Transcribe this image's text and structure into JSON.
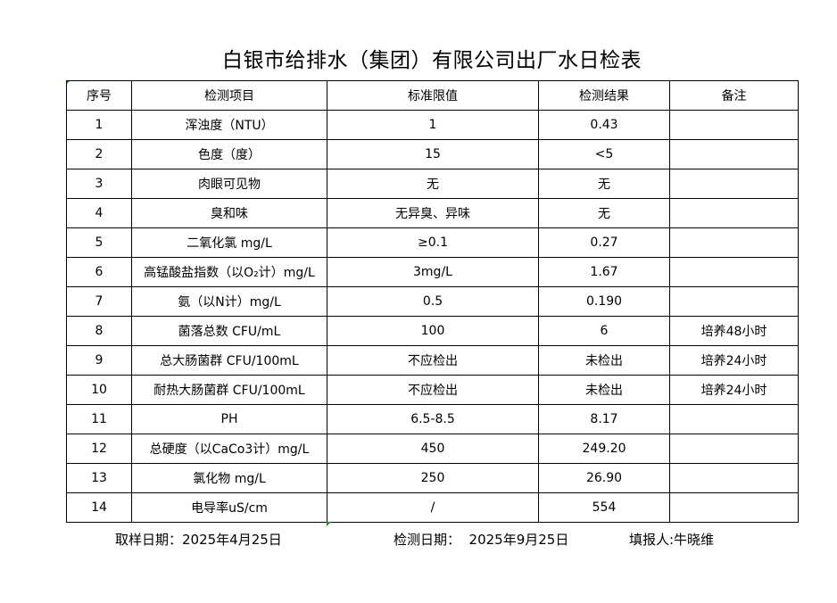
{
  "title": "白银市给排水（集团）有限公司出厂水日检表",
  "columns": [
    "序号",
    "检测项目",
    "标准限值",
    "检测结果",
    "备注"
  ],
  "rows": [
    [
      "1",
      "浑浊度（NTU）",
      "1",
      "0.43",
      ""
    ],
    [
      "2",
      "色度（度）",
      "15",
      "<5",
      ""
    ],
    [
      "3",
      "肉眼可见物",
      "无",
      "无",
      ""
    ],
    [
      "4",
      "臭和味",
      "无异臭、异味",
      "无",
      ""
    ],
    [
      "5",
      "二氧化氯 mg/L",
      "≥0.1",
      "0.27",
      ""
    ],
    [
      "6",
      "高锰酸盐指数（以O₂计）mg/L",
      "3mg/L",
      "1.67",
      ""
    ],
    [
      "7",
      "氨（以N计）mg/L",
      "0.5",
      "0.190",
      ""
    ],
    [
      "8",
      "菌落总数 CFU/mL",
      "100",
      "6",
      "培养48小时"
    ],
    [
      "9",
      "总大肠菌群 CFU/100mL",
      "不应检出",
      "未检出",
      "培养24小时"
    ],
    [
      "10",
      "耐热大肠菌群 CFU/100mL",
      "不应检出",
      "未检出",
      "培养24小时"
    ],
    [
      "11",
      "PH",
      "6.5-8.5",
      "8.17",
      ""
    ],
    [
      "12",
      "总硬度（以CaCo3计）mg/L",
      "450",
      "249.20",
      ""
    ],
    [
      "13",
      "氯化物 mg/L",
      "250",
      "26.90",
      ""
    ],
    [
      "14",
      "电导率uS/cm",
      "/",
      "554",
      ""
    ]
  ],
  "footer": {
    "sample_date": "取样日期：2025年4月25日",
    "test_date": "检测日期：  2025年9月25日",
    "reporter": "填报人:牛晓维"
  }
}
